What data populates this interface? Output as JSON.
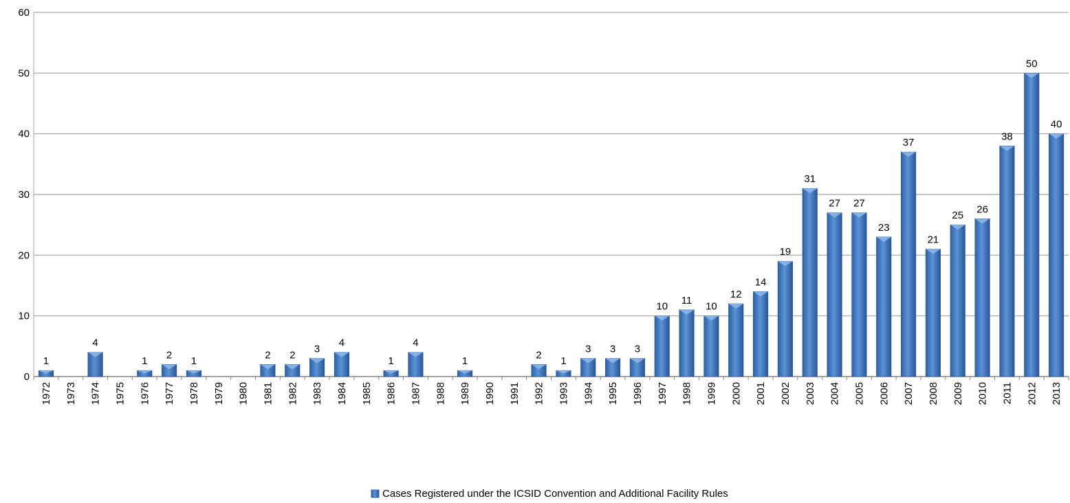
{
  "chart_data": {
    "type": "bar",
    "categories": [
      "1972",
      "1973",
      "1974",
      "1975",
      "1976",
      "1977",
      "1978",
      "1979",
      "1980",
      "1981",
      "1982",
      "1983",
      "1984",
      "1985",
      "1986",
      "1987",
      "1988",
      "1989",
      "1990",
      "1991",
      "1992",
      "1993",
      "1994",
      "1995",
      "1996",
      "1997",
      "1998",
      "1999",
      "2000",
      "2001",
      "2002",
      "2003",
      "2004",
      "2005",
      "2006",
      "2007",
      "2008",
      "2009",
      "2010",
      "2011",
      "2012",
      "2013"
    ],
    "series": [
      {
        "name": "Cases Registered under the ICSID Convention and Additional Facility Rules",
        "values": [
          1,
          0,
          4,
          0,
          1,
          2,
          1,
          0,
          0,
          2,
          2,
          3,
          4,
          0,
          1,
          4,
          0,
          1,
          0,
          0,
          2,
          1,
          3,
          3,
          3,
          10,
          11,
          10,
          12,
          14,
          19,
          31,
          27,
          27,
          23,
          37,
          21,
          25,
          26,
          38,
          50,
          40
        ],
        "color": "#4a80c8"
      }
    ],
    "data_labels_shown_for_zero": false,
    "ylim": [
      0,
      60
    ],
    "yticks": [
      0,
      10,
      20,
      30,
      40,
      50,
      60
    ],
    "grid": true,
    "legend": "bottom-center",
    "title": "",
    "xlabel": "",
    "ylabel": ""
  }
}
